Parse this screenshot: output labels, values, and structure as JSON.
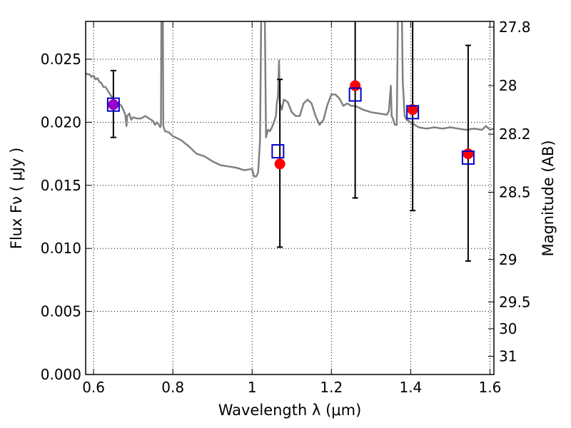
{
  "chart_data": {
    "type": "scatter",
    "xlabel": "Wavelength  λ (μm)",
    "ylabel": "Flux  Fν  ( μJy )",
    "ylabel_right": "Magnitude (AB)",
    "xlim": [
      0.58,
      1.61
    ],
    "ylim": [
      0.0,
      0.028
    ],
    "grid": true,
    "x_ticks": [
      0.6,
      0.8,
      1.0,
      1.2,
      1.4,
      1.6
    ],
    "x_tick_labels": [
      "0.6",
      "0.8",
      "1",
      "1.2",
      "1.4",
      "1.6"
    ],
    "y_ticks": [
      0.0,
      0.005,
      0.01,
      0.015,
      0.02,
      0.025
    ],
    "y_tick_labels": [
      "0.000",
      "0.005",
      "0.010",
      "0.015",
      "0.020",
      "0.025"
    ],
    "right_ticks": [
      {
        "label": "27.8",
        "mag": 27.8
      },
      {
        "label": "28",
        "mag": 28.0
      },
      {
        "label": "28.2",
        "mag": 28.2
      },
      {
        "label": "28.5",
        "mag": 28.5
      },
      {
        "label": "29",
        "mag": 29.0
      },
      {
        "label": "29.5",
        "mag": 29.5
      },
      {
        "label": "30",
        "mag": 30.0
      },
      {
        "label": "31",
        "mag": 31.0
      }
    ],
    "series": [
      {
        "kind": "model-spectrum",
        "color": "#808080",
        "x": [
          0.58,
          0.585,
          0.59,
          0.595,
          0.6,
          0.605,
          0.61,
          0.615,
          0.62,
          0.625,
          0.63,
          0.64,
          0.65,
          0.66,
          0.67,
          0.675,
          0.68,
          0.683,
          0.685,
          0.69,
          0.695,
          0.7,
          0.71,
          0.72,
          0.73,
          0.74,
          0.75,
          0.755,
          0.76,
          0.765,
          0.768,
          0.77,
          0.772,
          0.774,
          0.776,
          0.78,
          0.79,
          0.8,
          0.82,
          0.84,
          0.86,
          0.88,
          0.9,
          0.92,
          0.94,
          0.96,
          0.98,
          1.0,
          1.005,
          1.01,
          1.015,
          1.02,
          1.025,
          1.027,
          1.03,
          1.035,
          1.04,
          1.045,
          1.05,
          1.055,
          1.06,
          1.062,
          1.065,
          1.068,
          1.07,
          1.075,
          1.08,
          1.09,
          1.1,
          1.11,
          1.12,
          1.13,
          1.14,
          1.15,
          1.16,
          1.17,
          1.18,
          1.19,
          1.2,
          1.21,
          1.22,
          1.23,
          1.24,
          1.25,
          1.26,
          1.28,
          1.3,
          1.32,
          1.34,
          1.345,
          1.35,
          1.352,
          1.355,
          1.36,
          1.365,
          1.37,
          1.375,
          1.38,
          1.385,
          1.39,
          1.4,
          1.42,
          1.44,
          1.46,
          1.48,
          1.5,
          1.52,
          1.54,
          1.56,
          1.58,
          1.59,
          1.6,
          1.61
        ],
        "y": [
          0.0239,
          0.0238,
          0.0238,
          0.0236,
          0.0237,
          0.0234,
          0.0235,
          0.0232,
          0.0231,
          0.0228,
          0.0228,
          0.0223,
          0.0218,
          0.0216,
          0.0213,
          0.021,
          0.0206,
          0.0197,
          0.0205,
          0.0207,
          0.0202,
          0.0204,
          0.0203,
          0.0203,
          0.0205,
          0.0203,
          0.0201,
          0.0198,
          0.02,
          0.0198,
          0.0196,
          0.0198,
          0.035,
          0.035,
          0.0197,
          0.0193,
          0.0192,
          0.0189,
          0.0186,
          0.0181,
          0.0175,
          0.0173,
          0.0169,
          0.0166,
          0.0165,
          0.0164,
          0.0162,
          0.0163,
          0.0157,
          0.0157,
          0.016,
          0.0185,
          0.035,
          0.035,
          0.035,
          0.0188,
          0.0194,
          0.0193,
          0.0196,
          0.02,
          0.0205,
          0.0215,
          0.022,
          0.0249,
          0.0215,
          0.021,
          0.0218,
          0.0216,
          0.0208,
          0.0205,
          0.0205,
          0.0215,
          0.0218,
          0.0215,
          0.0205,
          0.0198,
          0.0202,
          0.0214,
          0.0222,
          0.0222,
          0.0219,
          0.0213,
          0.0215,
          0.0213,
          0.0213,
          0.021,
          0.0208,
          0.0207,
          0.0206,
          0.0209,
          0.0229,
          0.0205,
          0.0203,
          0.0198,
          0.0198,
          0.035,
          0.035,
          0.0232,
          0.0205,
          0.0202,
          0.02,
          0.0196,
          0.0195,
          0.0196,
          0.0195,
          0.0196,
          0.0195,
          0.0194,
          0.0195,
          0.0194,
          0.0197,
          0.0194,
          0.0195
        ]
      },
      {
        "kind": "observed",
        "marker": "circle",
        "color": "#ff0000",
        "x": [
          0.65,
          1.07,
          1.26,
          1.405,
          1.545
        ],
        "y": [
          0.0214,
          0.0167,
          0.0229,
          0.021,
          0.0175
        ],
        "yerr_low": [
          0.0188,
          0.0101,
          0.014,
          0.013,
          0.009
        ],
        "yerr_high": [
          0.0241,
          0.0234,
          0.0285,
          0.0285,
          0.0261
        ]
      },
      {
        "kind": "model-photometry",
        "marker": "square-open",
        "color": "#0000cc",
        "x": [
          0.65,
          1.065,
          1.26,
          1.405,
          1.545
        ],
        "y": [
          0.0214,
          0.0177,
          0.0222,
          0.0208,
          0.0172
        ]
      }
    ],
    "overlap_color": "#9900cc"
  }
}
